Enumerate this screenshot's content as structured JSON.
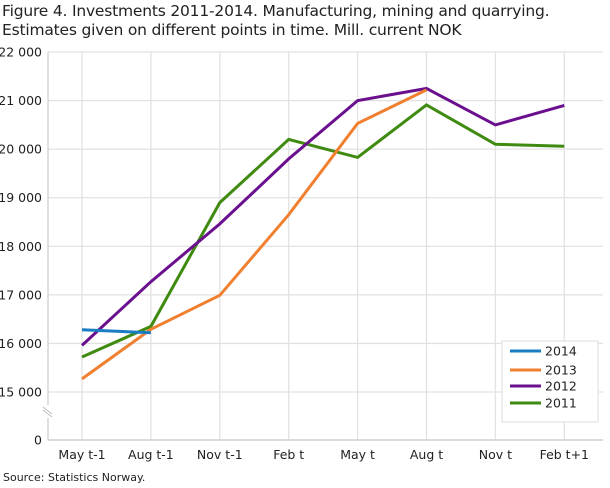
{
  "title": {
    "line1": "Figure 4. Investments 2011-2014. Manufacturing, mining and quarrying.",
    "line2": "Estimates given on different points in time. Mill. current NOK"
  },
  "source": "Source: Statistics Norway.",
  "colors": {
    "2014": "#1a7dc4",
    "2013": "#f08030",
    "2012": "#6a0f8e",
    "2011": "#3f8a10",
    "grid": "#e2e2e2",
    "axis": "#cfcfcf"
  },
  "chart_data": {
    "type": "line",
    "title": "Figure 4. Investments 2011-2014. Manufacturing, mining and quarrying. Estimates given on different points in time. Mill. current NOK",
    "xlabel": "",
    "ylabel": "",
    "categories": [
      "May t-1",
      "Aug t-1",
      "Nov t-1",
      "Feb t",
      "May t",
      "Aug t",
      "Nov t",
      "Feb t+1"
    ],
    "y_ticks": [
      "0",
      "15 000",
      "16 000",
      "17 000",
      "18 000",
      "19 000",
      "20 000",
      "21 000",
      "22 000"
    ],
    "ylim": [
      15000,
      22000
    ],
    "y_axis_break": "between 0 and 15 000",
    "grid": true,
    "legend_position": "bottom-right inside plot",
    "series": [
      {
        "name": "2014",
        "values": [
          16280,
          16220,
          null,
          null,
          null,
          null,
          null,
          null
        ]
      },
      {
        "name": "2013",
        "values": [
          15270,
          16290,
          16990,
          18650,
          20530,
          21220,
          null,
          null
        ]
      },
      {
        "name": "2012",
        "values": [
          15960,
          17270,
          18460,
          19800,
          21000,
          21250,
          20500,
          20900
        ]
      },
      {
        "name": "2011",
        "values": [
          15720,
          16350,
          18900,
          20200,
          19830,
          20910,
          20100,
          20060
        ]
      }
    ]
  }
}
